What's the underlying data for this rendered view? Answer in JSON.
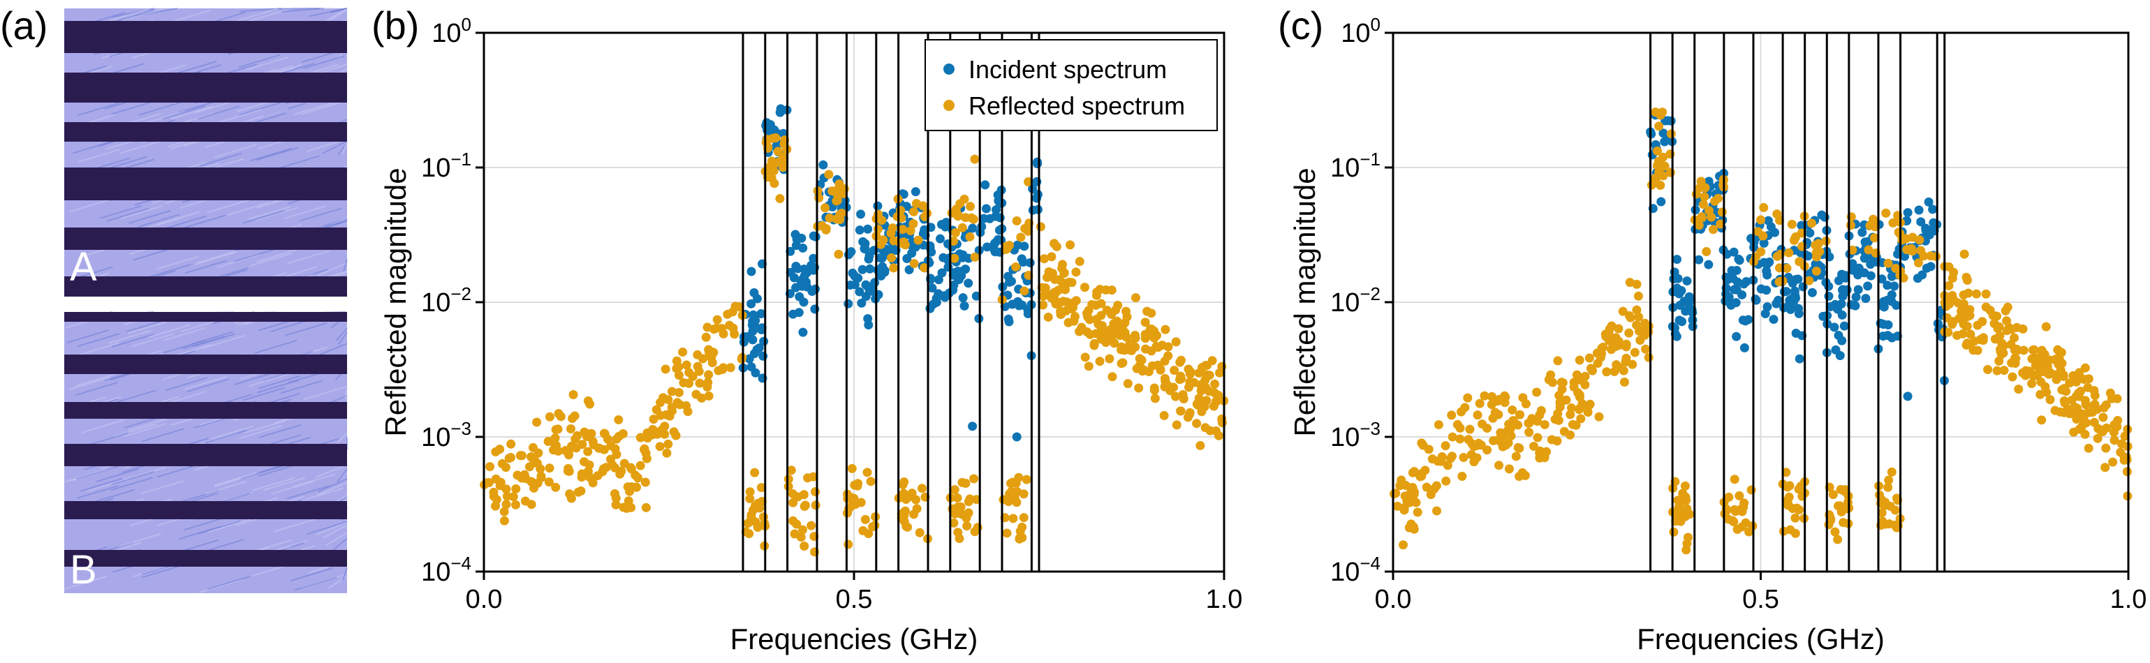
{
  "figure": {
    "panel_labels": [
      "(a)",
      "(b)",
      "(c)"
    ],
    "sample_labels": [
      "A",
      "B"
    ],
    "colors": {
      "incident": "#0f74b4",
      "reflected": "#e39f0f",
      "stripe_dark": "#2b1c50",
      "stripe_light": "#a9a9ea",
      "stripe_blue": "#6f7fd6",
      "grid": "#dcdcdc"
    }
  },
  "chart_data": [
    {
      "panel": "(b)",
      "type": "scatter",
      "xlabel": "Frequencies (GHz)",
      "ylabel": "Reflected magnitude",
      "xlim": [
        0.0,
        1.0
      ],
      "ylim_log10": [
        -4,
        0
      ],
      "yscale": "log",
      "x_ticks": [
        "0.0",
        "0.5",
        "1.0"
      ],
      "y_ticks": [
        {
          "base": "10",
          "exp": "0"
        },
        {
          "base": "10",
          "exp": "−1"
        },
        {
          "base": "10",
          "exp": "−2"
        },
        {
          "base": "10",
          "exp": "−3"
        },
        {
          "base": "10",
          "exp": "−4"
        }
      ],
      "legend": {
        "position": "top-right",
        "entries": [
          "Incident spectrum",
          "Reflected spectrum"
        ]
      },
      "grid": true,
      "vertical_lines_ghz": [
        0.35,
        0.38,
        0.41,
        0.45,
        0.49,
        0.53,
        0.56,
        0.6,
        0.63,
        0.67,
        0.7,
        0.74,
        0.75
      ],
      "series": [
        {
          "name": "Incident spectrum",
          "clusters": [
            {
              "x_range": [
                0.35,
                0.38
              ],
              "y_center": 0.0065,
              "spread_decades": 0.35,
              "count": 30
            },
            {
              "x_range": [
                0.38,
                0.41
              ],
              "y_center": 0.15,
              "spread_decades": 0.2,
              "count": 22
            },
            {
              "x_range": [
                0.41,
                0.45
              ],
              "y_center": 0.015,
              "spread_decades": 0.35,
              "count": 34
            },
            {
              "x_range": [
                0.45,
                0.49
              ],
              "y_center": 0.06,
              "spread_decades": 0.25,
              "count": 26
            },
            {
              "x_range": [
                0.49,
                0.53
              ],
              "y_center": 0.016,
              "spread_decades": 0.35,
              "count": 32
            },
            {
              "x_range": [
                0.53,
                0.56
              ],
              "y_center": 0.025,
              "spread_decades": 0.3,
              "count": 28
            },
            {
              "x_range": [
                0.56,
                0.6
              ],
              "y_center": 0.035,
              "spread_decades": 0.25,
              "count": 34
            },
            {
              "x_range": [
                0.6,
                0.63
              ],
              "y_center": 0.02,
              "spread_decades": 0.3,
              "count": 28
            },
            {
              "x_range": [
                0.63,
                0.67
              ],
              "y_center": 0.018,
              "spread_decades": 0.35,
              "count": 32
            },
            {
              "x_range": [
                0.67,
                0.7
              ],
              "y_center": 0.04,
              "spread_decades": 0.25,
              "count": 24
            },
            {
              "x_range": [
                0.7,
                0.74
              ],
              "y_center": 0.012,
              "spread_decades": 0.35,
              "count": 30
            },
            {
              "x_range": [
                0.74,
                0.75
              ],
              "y_center": 0.08,
              "spread_decades": 0.25,
              "count": 8
            }
          ],
          "extra_points": [
            {
              "x": 0.66,
              "y": 0.0012
            },
            {
              "x": 0.72,
              "y": 0.001
            }
          ]
        },
        {
          "name": "Reflected spectrum",
          "envelope": [
            [
              0.0,
              0.0004
            ],
            [
              0.05,
              0.0005
            ],
            [
              0.1,
              0.0008
            ],
            [
              0.15,
              0.0009
            ],
            [
              0.2,
              0.0005
            ],
            [
              0.25,
              0.0015
            ],
            [
              0.3,
              0.004
            ],
            [
              0.34,
              0.007
            ],
            [
              0.75,
              0.02
            ],
            [
              0.8,
              0.01
            ],
            [
              0.85,
              0.006
            ],
            [
              0.9,
              0.004
            ],
            [
              0.95,
              0.0025
            ],
            [
              1.0,
              0.002
            ]
          ],
          "band_clusters": [
            {
              "x_range": [
                0.38,
                0.41
              ],
              "y_center": 0.12,
              "spread_decades": 0.25,
              "count": 24
            },
            {
              "x_range": [
                0.45,
                0.49
              ],
              "y_center": 0.05,
              "spread_decades": 0.25,
              "count": 22
            },
            {
              "x_range": [
                0.53,
                0.6
              ],
              "y_center": 0.035,
              "spread_decades": 0.25,
              "count": 30
            },
            {
              "x_range": [
                0.63,
                0.67
              ],
              "y_center": 0.04,
              "spread_decades": 0.3,
              "count": 18
            },
            {
              "x_range": [
                0.7,
                0.74
              ],
              "y_center": 0.03,
              "spread_decades": 0.3,
              "count": 14
            }
          ],
          "gap_ranges_low": [
            [
              0.35,
              0.38
            ],
            [
              0.41,
              0.45
            ],
            [
              0.49,
              0.53
            ],
            [
              0.56,
              0.6
            ],
            [
              0.63,
              0.67
            ],
            [
              0.7,
              0.74
            ]
          ],
          "gap_level": 0.0003
        }
      ]
    },
    {
      "panel": "(c)",
      "type": "scatter",
      "xlabel": "Frequencies (GHz)",
      "ylabel": "Reflected magnitude",
      "xlim": [
        0.0,
        1.0
      ],
      "ylim_log10": [
        -4,
        0
      ],
      "yscale": "log",
      "x_ticks": [
        "0.0",
        "0.5",
        "1.0"
      ],
      "y_ticks": [
        {
          "base": "10",
          "exp": "0"
        },
        {
          "base": "10",
          "exp": "−1"
        },
        {
          "base": "10",
          "exp": "−2"
        },
        {
          "base": "10",
          "exp": "−3"
        },
        {
          "base": "10",
          "exp": "−4"
        }
      ],
      "grid": true,
      "vertical_lines_ghz": [
        0.35,
        0.38,
        0.41,
        0.45,
        0.49,
        0.53,
        0.56,
        0.59,
        0.62,
        0.66,
        0.69,
        0.74,
        0.75
      ],
      "series": [
        {
          "name": "Incident spectrum",
          "clusters": [
            {
              "x_range": [
                0.35,
                0.38
              ],
              "y_center": 0.15,
              "spread_decades": 0.3,
              "count": 20
            },
            {
              "x_range": [
                0.38,
                0.41
              ],
              "y_center": 0.01,
              "spread_decades": 0.35,
              "count": 26
            },
            {
              "x_range": [
                0.41,
                0.45
              ],
              "y_center": 0.05,
              "spread_decades": 0.3,
              "count": 26
            },
            {
              "x_range": [
                0.45,
                0.49
              ],
              "y_center": 0.012,
              "spread_decades": 0.35,
              "count": 30
            },
            {
              "x_range": [
                0.49,
                0.53
              ],
              "y_center": 0.018,
              "spread_decades": 0.3,
              "count": 30
            },
            {
              "x_range": [
                0.53,
                0.56
              ],
              "y_center": 0.012,
              "spread_decades": 0.35,
              "count": 28
            },
            {
              "x_range": [
                0.56,
                0.59
              ],
              "y_center": 0.02,
              "spread_decades": 0.3,
              "count": 28
            },
            {
              "x_range": [
                0.59,
                0.62
              ],
              "y_center": 0.01,
              "spread_decades": 0.35,
              "count": 28
            },
            {
              "x_range": [
                0.62,
                0.66
              ],
              "y_center": 0.02,
              "spread_decades": 0.3,
              "count": 30
            },
            {
              "x_range": [
                0.66,
                0.69
              ],
              "y_center": 0.012,
              "spread_decades": 0.35,
              "count": 28
            },
            {
              "x_range": [
                0.69,
                0.74
              ],
              "y_center": 0.03,
              "spread_decades": 0.3,
              "count": 30
            },
            {
              "x_range": [
                0.74,
                0.75
              ],
              "y_center": 0.006,
              "spread_decades": 0.3,
              "count": 8
            }
          ],
          "extra_points": [
            {
              "x": 0.66,
              "y": 0.0045
            },
            {
              "x": 0.7,
              "y": 0.002
            }
          ]
        },
        {
          "name": "Reflected spectrum",
          "envelope": [
            [
              0.0,
              0.0003
            ],
            [
              0.05,
              0.0005
            ],
            [
              0.1,
              0.001
            ],
            [
              0.15,
              0.0012
            ],
            [
              0.2,
              0.0012
            ],
            [
              0.25,
              0.002
            ],
            [
              0.3,
              0.005
            ],
            [
              0.34,
              0.007
            ],
            [
              0.75,
              0.01
            ],
            [
              0.8,
              0.007
            ],
            [
              0.85,
              0.004
            ],
            [
              0.9,
              0.003
            ],
            [
              0.95,
              0.0015
            ],
            [
              1.0,
              0.0008
            ]
          ],
          "band_clusters": [
            {
              "x_range": [
                0.35,
                0.38
              ],
              "y_center": 0.12,
              "spread_decades": 0.25,
              "count": 18
            },
            {
              "x_range": [
                0.41,
                0.45
              ],
              "y_center": 0.05,
              "spread_decades": 0.25,
              "count": 22
            },
            {
              "x_range": [
                0.49,
                0.59
              ],
              "y_center": 0.025,
              "spread_decades": 0.25,
              "count": 34
            },
            {
              "x_range": [
                0.62,
                0.74
              ],
              "y_center": 0.03,
              "spread_decades": 0.25,
              "count": 34
            }
          ],
          "gap_ranges_low": [
            [
              0.38,
              0.41
            ],
            [
              0.45,
              0.49
            ],
            [
              0.53,
              0.56
            ],
            [
              0.59,
              0.62
            ],
            [
              0.66,
              0.69
            ]
          ],
          "gap_level": 0.0003
        }
      ]
    }
  ]
}
